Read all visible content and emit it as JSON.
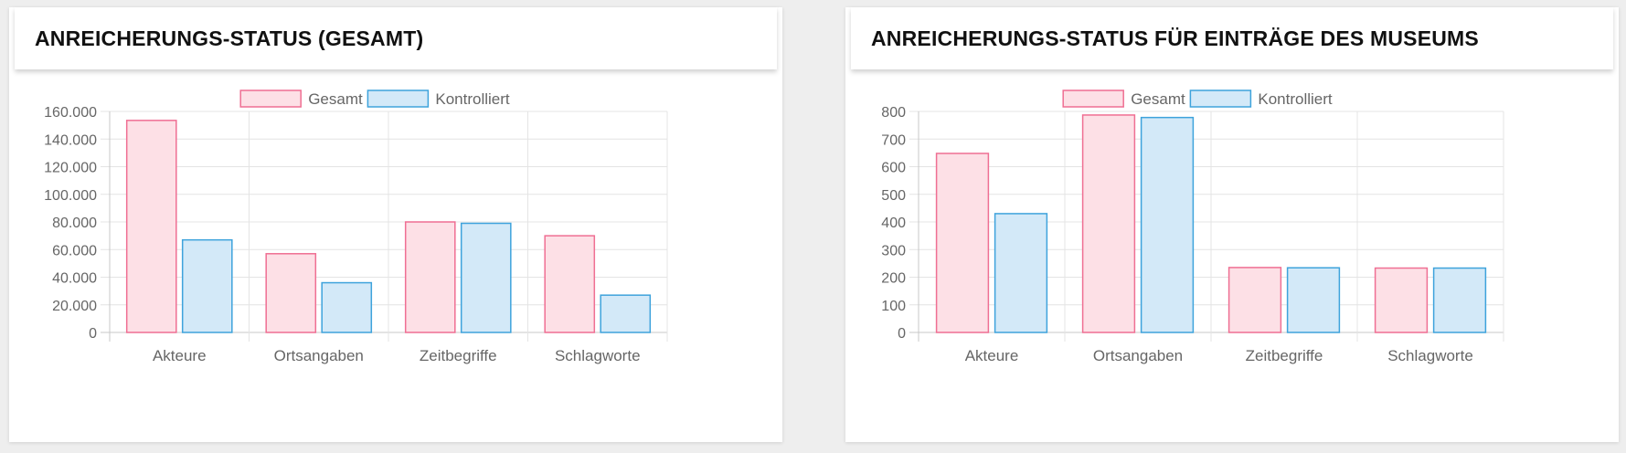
{
  "cards": [
    {
      "title": "ANREICHERUNGS-STATUS (GESAMT)"
    },
    {
      "title": "ANREICHERUNGS-STATUS FÜR EINTRÄGE DES MUSEUMS"
    }
  ],
  "chart_data": [
    {
      "type": "bar",
      "title": "ANREICHERUNGS-STATUS (GESAMT)",
      "categories": [
        "Akteure",
        "Ortsangaben",
        "Zeitbegriffe",
        "Schlagworte"
      ],
      "series": [
        {
          "name": "Gesamt",
          "values": [
            153500,
            57000,
            80000,
            70000
          ],
          "fill": "#fde0e6",
          "stroke": "#ef6f93"
        },
        {
          "name": "Kontrolliert",
          "values": [
            67000,
            36000,
            79000,
            27000
          ],
          "fill": "#d3e9f8",
          "stroke": "#3ea3dc"
        }
      ],
      "ylim": [
        0,
        160000
      ],
      "yticks": [
        0,
        20000,
        40000,
        60000,
        80000,
        100000,
        120000,
        140000,
        160000
      ],
      "ytick_labels": [
        "0",
        "20.000",
        "40.000",
        "60.000",
        "80.000",
        "100.000",
        "120.000",
        "140.000",
        "160.000"
      ],
      "legend_position": "top-center",
      "grid": true
    },
    {
      "type": "bar",
      "title": "ANREICHERUNGS-STATUS FÜR EINTRÄGE DES MUSEUMS",
      "categories": [
        "Akteure",
        "Ortsangaben",
        "Zeitbegriffe",
        "Schlagworte"
      ],
      "series": [
        {
          "name": "Gesamt",
          "values": [
            648,
            787,
            235,
            233
          ],
          "fill": "#fde0e6",
          "stroke": "#ef6f93"
        },
        {
          "name": "Kontrolliert",
          "values": [
            430,
            778,
            234,
            233
          ],
          "fill": "#d3e9f8",
          "stroke": "#3ea3dc"
        }
      ],
      "ylim": [
        0,
        800
      ],
      "yticks": [
        0,
        100,
        200,
        300,
        400,
        500,
        600,
        700,
        800
      ],
      "ytick_labels": [
        "0",
        "100",
        "200",
        "300",
        "400",
        "500",
        "600",
        "700",
        "800"
      ],
      "legend_position": "top-center",
      "grid": true
    }
  ]
}
